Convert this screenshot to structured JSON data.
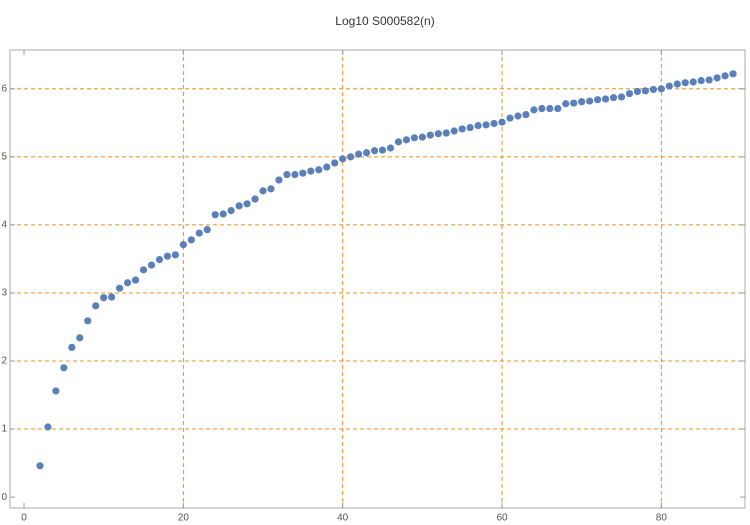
{
  "chart_data": {
    "type": "scatter",
    "title": "Log10 S000582(n)",
    "x": [
      2,
      3,
      4,
      5,
      6,
      7,
      8,
      9,
      10,
      11,
      12,
      13,
      14,
      15,
      16,
      17,
      18,
      19,
      20,
      21,
      22,
      23,
      24,
      25,
      26,
      27,
      28,
      29,
      30,
      31,
      32,
      33,
      34,
      35,
      36,
      37,
      38,
      39,
      40,
      41,
      42,
      43,
      44,
      45,
      46,
      47,
      48,
      49,
      50,
      51,
      52,
      53,
      54,
      55,
      56,
      57,
      58,
      59,
      60,
      61,
      62,
      63,
      64,
      65,
      66,
      67,
      68,
      69,
      70,
      71,
      72,
      73,
      74,
      75,
      76,
      77,
      78,
      79,
      80,
      81,
      82,
      83,
      84,
      85,
      86,
      87,
      88,
      89
    ],
    "values": [
      0.46,
      1.03,
      1.56,
      1.9,
      2.2,
      2.34,
      2.59,
      2.81,
      2.93,
      2.94,
      3.07,
      3.15,
      3.19,
      3.34,
      3.41,
      3.49,
      3.54,
      3.56,
      3.71,
      3.78,
      3.88,
      3.93,
      4.15,
      4.16,
      4.21,
      4.28,
      4.31,
      4.38,
      4.5,
      4.53,
      4.66,
      4.74,
      4.74,
      4.76,
      4.79,
      4.81,
      4.85,
      4.91,
      4.97,
      5.0,
      5.04,
      5.06,
      5.09,
      5.1,
      5.13,
      5.22,
      5.25,
      5.28,
      5.29,
      5.32,
      5.34,
      5.35,
      5.38,
      5.41,
      5.43,
      5.46,
      5.47,
      5.49,
      5.51,
      5.57,
      5.6,
      5.62,
      5.69,
      5.71,
      5.71,
      5.71,
      5.78,
      5.79,
      5.81,
      5.82,
      5.84,
      5.85,
      5.87,
      5.88,
      5.93,
      5.96,
      5.97,
      5.99,
      6.0,
      6.04,
      6.07,
      6.09,
      6.1,
      6.12,
      6.13,
      6.16,
      6.19,
      6.22
    ],
    "color": "#5b7fb9",
    "grid_color": "#e8901c",
    "xlim": [
      -1.76,
      90.5
    ],
    "ylim": [
      -0.16,
      6.57
    ],
    "xticks": [
      0,
      20,
      40,
      60,
      80
    ],
    "yticks": [
      0,
      1,
      2,
      3,
      4,
      5,
      6
    ],
    "xgrid": [
      20,
      40,
      60,
      80
    ],
    "ygrid": [
      1,
      2,
      3,
      4,
      5,
      6
    ]
  }
}
